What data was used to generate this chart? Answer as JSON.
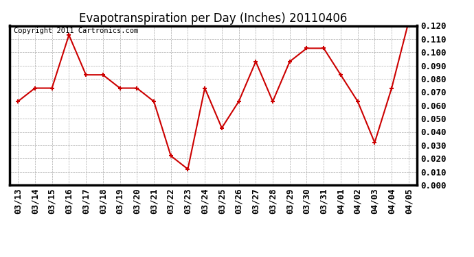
{
  "title": "Evapotranspiration per Day (Inches) 20110406",
  "copyright": "Copyright 2011 Cartronics.com",
  "dates": [
    "03/13",
    "03/14",
    "03/15",
    "03/16",
    "03/17",
    "03/18",
    "03/19",
    "03/20",
    "03/21",
    "03/22",
    "03/23",
    "03/24",
    "03/25",
    "03/26",
    "03/27",
    "03/28",
    "03/29",
    "03/30",
    "03/31",
    "04/01",
    "04/02",
    "04/03",
    "04/04",
    "04/05"
  ],
  "values": [
    0.063,
    0.073,
    0.073,
    0.113,
    0.083,
    0.083,
    0.073,
    0.073,
    0.063,
    0.022,
    0.012,
    0.073,
    0.043,
    0.063,
    0.093,
    0.063,
    0.093,
    0.103,
    0.103,
    0.083,
    0.063,
    0.032,
    0.073,
    0.123
  ],
  "line_color": "#cc0000",
  "marker": "+",
  "marker_size": 5,
  "ylim": [
    0.0,
    0.12
  ],
  "ytick_step": 0.01,
  "background_color": "#ffffff",
  "grid_color": "#aaaaaa",
  "title_fontsize": 12,
  "copyright_fontsize": 7.5,
  "tick_fontsize": 9,
  "border_color": "#000000",
  "border_width": 2.5
}
